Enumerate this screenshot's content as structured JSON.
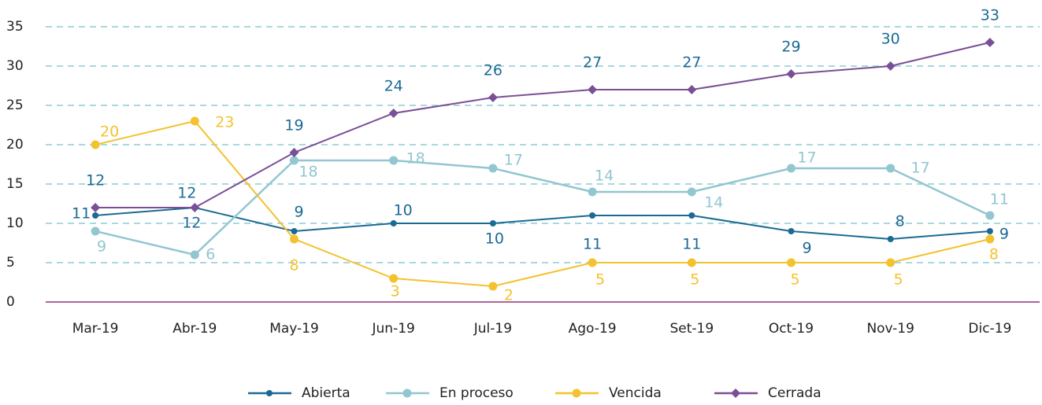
{
  "chart_data": {
    "type": "line",
    "categories": [
      "Mar-19",
      "Abr-19",
      "May-19",
      "Jun-19",
      "Jul-19",
      "Ago-19",
      "Set-19",
      "Oct-19",
      "Nov-19",
      "Dic-19"
    ],
    "series": [
      {
        "name": "Abierta",
        "color": "#1b6a94",
        "marker": "circle",
        "values": [
          11,
          12,
          9,
          10,
          10,
          11,
          11,
          9,
          8,
          9
        ]
      },
      {
        "name": "En proceso",
        "color": "#92c6d1",
        "marker": "circle",
        "values": [
          9,
          6,
          18,
          18,
          17,
          14,
          14,
          17,
          17,
          11
        ]
      },
      {
        "name": "Vencida",
        "color": "#f4c22e",
        "marker": "circle",
        "values": [
          20,
          23,
          8,
          3,
          2,
          5,
          5,
          5,
          5,
          8
        ]
      },
      {
        "name": "Cerrada",
        "color": "#7a4f97",
        "marker": "diamond",
        "values": [
          12,
          12,
          19,
          24,
          26,
          27,
          27,
          29,
          30,
          33
        ]
      }
    ],
    "ylim": [
      0,
      35
    ],
    "yticks": [
      0,
      5,
      10,
      15,
      20,
      25,
      30,
      35
    ],
    "grid": true,
    "legend": "bottom"
  }
}
